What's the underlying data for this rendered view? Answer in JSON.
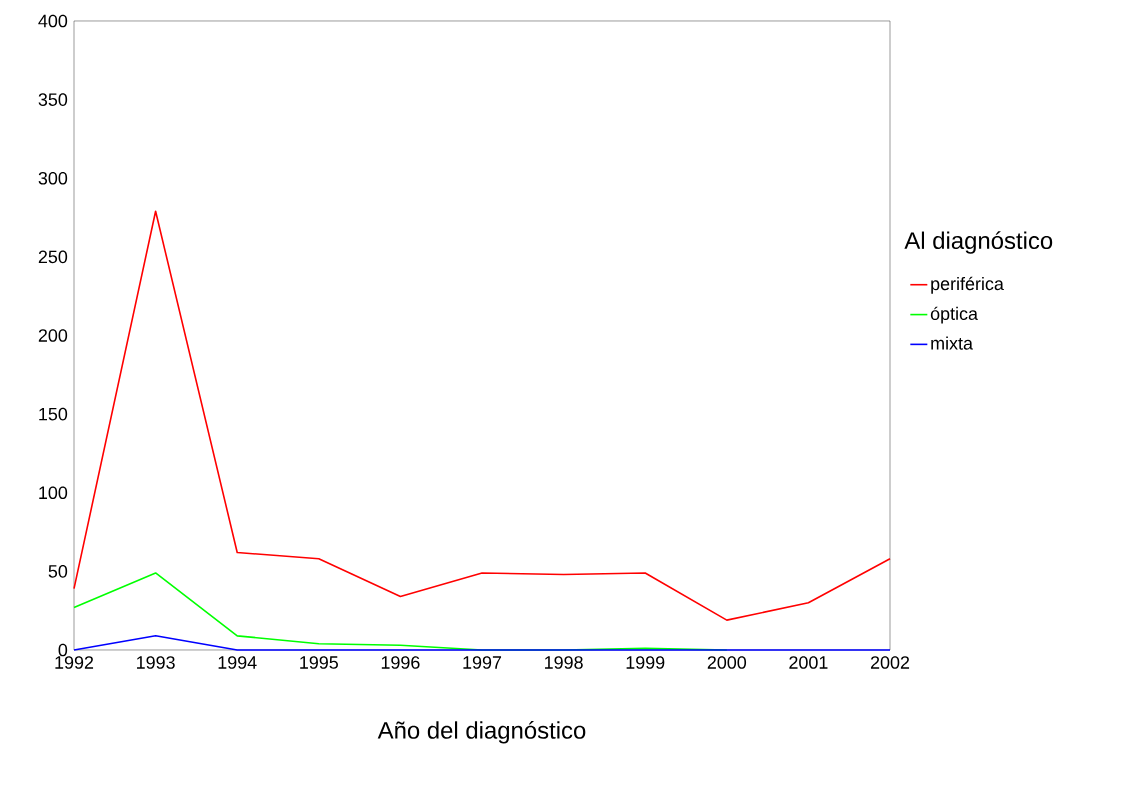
{
  "chart_data": {
    "type": "line",
    "xlabel": "Año del diagnóstico",
    "legend_title": "Al diagnóstico",
    "x": [
      1992,
      1993,
      1994,
      1995,
      1996,
      1997,
      1998,
      1999,
      2000,
      2001,
      2002
    ],
    "series": [
      {
        "name": "periférica",
        "color": "#ff0000",
        "values": [
          39,
          279,
          62,
          58,
          34,
          49,
          48,
          49,
          19,
          30,
          58
        ]
      },
      {
        "name": "óptica",
        "color": "#00ff00",
        "values": [
          27,
          49,
          9,
          4,
          3,
          0,
          0,
          1,
          0,
          null,
          null
        ]
      },
      {
        "name": "mixta",
        "color": "#0000ff",
        "values": [
          0,
          9,
          0,
          0,
          0,
          0,
          0,
          0,
          0,
          0,
          0
        ]
      }
    ],
    "xlim": [
      1992,
      2002
    ],
    "xticks": [
      1992,
      1993,
      1994,
      1995,
      1996,
      1997,
      1998,
      1999,
      2000,
      2001,
      2002
    ],
    "ylim": [
      0,
      400
    ],
    "yticks": [
      0,
      50,
      100,
      150,
      200,
      250,
      300,
      350,
      400
    ],
    "grid": false,
    "legend": "right",
    "marker": "none",
    "line_style": "solid"
  }
}
